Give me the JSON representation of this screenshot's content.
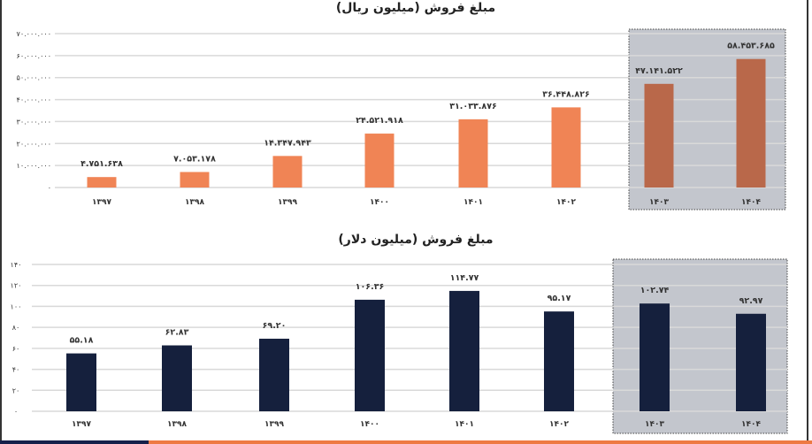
{
  "chart_data": [
    {
      "type": "bar",
      "title": "مبلغ فروش (میلیون ریال)",
      "categories": [
        "۱۳۹۷",
        "۱۳۹۸",
        "۱۳۹۹",
        "۱۴۰۰",
        "۱۴۰۱",
        "۱۴۰۲",
        "۱۴۰۳",
        "۱۴۰۴"
      ],
      "values": [
        4751638,
        7053178,
        14347943,
        24521918,
        31033876,
        36448826,
        47141522,
        58453685
      ],
      "data_labels": [
        "۴.۷۵۱.۶۳۸",
        "۷.۰۵۳.۱۷۸",
        "۱۴.۳۴۷.۹۴۳",
        "۲۴.۵۲۱.۹۱۸",
        "۳۱.۰۳۳.۸۷۶",
        "۳۶.۴۴۸.۸۲۶",
        "۴۷.۱۴۱.۵۲۲",
        "۵۸.۴۵۳.۶۸۵"
      ],
      "yticks": [
        "۰",
        "۱۰.۰۰۰.۰۰۰",
        "۲۰.۰۰۰.۰۰۰",
        "۳۰.۰۰۰.۰۰۰",
        "۴۰.۰۰۰.۰۰۰",
        "۵۰.۰۰۰.۰۰۰",
        "۶۰.۰۰۰.۰۰۰",
        "۷۰.۰۰۰.۰۰۰"
      ],
      "ylim": [
        0,
        70000000
      ],
      "grid": true,
      "colors": {
        "bar": "#f08455",
        "highlight_bar": "#b9684a",
        "highlight_bg": "#c3c6cd"
      },
      "highlighted_categories": [
        "۱۴۰۳",
        "۱۴۰۴"
      ]
    },
    {
      "type": "bar",
      "title": "مبلغ فروش (میلیون دلار)",
      "categories": [
        "۱۳۹۷",
        "۱۳۹۸",
        "۱۳۹۹",
        "۱۴۰۰",
        "۱۴۰۱",
        "۱۴۰۲",
        "۱۴۰۳",
        "۱۴۰۴"
      ],
      "values": [
        55.18,
        62.83,
        69.2,
        106.36,
        114.77,
        95.17,
        102.74,
        92.97
      ],
      "data_labels": [
        "۵۵.۱۸",
        "۶۲.۸۳",
        "۶۹.۲۰",
        "۱۰۶.۳۶",
        "۱۱۴.۷۷",
        "۹۵.۱۷",
        "۱۰۲.۷۴",
        "۹۲.۹۷"
      ],
      "yticks": [
        "۰",
        "۲۰",
        "۴۰",
        "۶۰",
        "۸۰",
        "۱۰۰",
        "۱۲۰",
        "۱۴۰"
      ],
      "ylim": [
        0,
        140
      ],
      "grid": true,
      "colors": {
        "bar": "#15203d",
        "highlight_bar": "#15203d",
        "highlight_bg": "#c3c6cd"
      },
      "highlighted_categories": [
        "۱۴۰۳",
        "۱۴۰۴"
      ]
    }
  ]
}
